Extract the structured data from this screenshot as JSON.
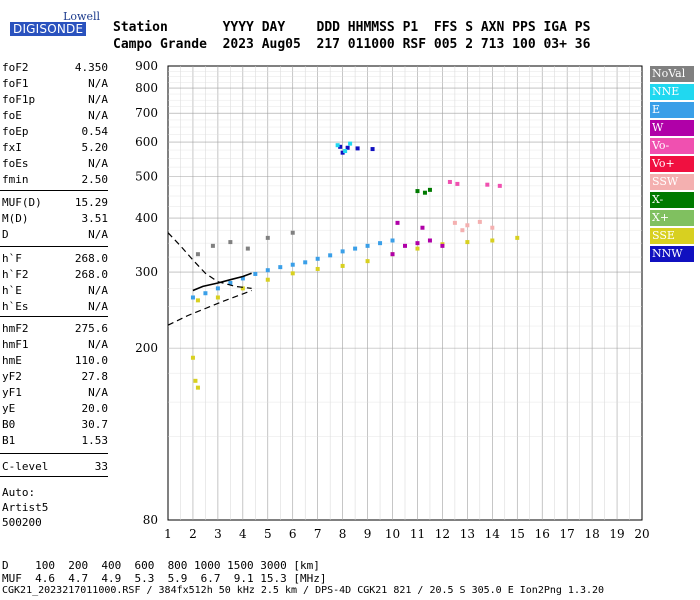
{
  "logo": {
    "lowell": "Lowell",
    "digisonde": "DIGISONDE"
  },
  "header": {
    "row1": "Station       YYYY DAY    DDD HHMMSS P1  FFS S AXN PPS IGA PS",
    "row2": "Campo Grande  2023 Aug05  217 011000 RSF 005 2 713 100 03+ 36"
  },
  "sidebar": {
    "group1": [
      {
        "k": "foF2",
        "v": "4.350"
      },
      {
        "k": "foF1",
        "v": "N/A"
      },
      {
        "k": "foF1p",
        "v": "N/A"
      },
      {
        "k": "foE",
        "v": "N/A"
      },
      {
        "k": "foEp",
        "v": "0.54"
      },
      {
        "k": "fxI",
        "v": "5.20"
      },
      {
        "k": "foEs",
        "v": "N/A"
      },
      {
        "k": "fmin",
        "v": "2.50"
      }
    ],
    "group2": [
      {
        "k": "MUF(D)",
        "v": "15.29"
      },
      {
        "k": "M(D)",
        "v": "3.51"
      },
      {
        "k": "D",
        "v": "N/A"
      }
    ],
    "group3": [
      {
        "k": "h`F",
        "v": "268.0"
      },
      {
        "k": "h`F2",
        "v": "268.0"
      },
      {
        "k": "h`E",
        "v": "N/A"
      },
      {
        "k": "h`Es",
        "v": "N/A"
      }
    ],
    "group4": [
      {
        "k": "hmF2",
        "v": "275.6"
      },
      {
        "k": "hmF1",
        "v": "N/A"
      },
      {
        "k": "hmE",
        "v": "110.0"
      },
      {
        "k": "yF2",
        "v": "27.8"
      },
      {
        "k": "yF1",
        "v": "N/A"
      },
      {
        "k": "yE",
        "v": "20.0"
      },
      {
        "k": "B0",
        "v": "30.7"
      },
      {
        "k": "B1",
        "v": "1.53"
      }
    ],
    "group5": [
      {
        "k": "C-level",
        "v": "33"
      }
    ],
    "auto": [
      "Auto:",
      "Artist5",
      "500200"
    ]
  },
  "legend": [
    {
      "label": "NoVal",
      "color": "#808080"
    },
    {
      "label": "NNE",
      "color": "#20d8f0"
    },
    {
      "label": "E",
      "color": "#3a9fe8"
    },
    {
      "label": "W",
      "color": "#b000a8"
    },
    {
      "label": "Vo-",
      "color": "#f050b0"
    },
    {
      "label": "Vo+",
      "color": "#f01040"
    },
    {
      "label": "SSW",
      "color": "#f4b0b0"
    },
    {
      "label": "X-",
      "color": "#007a00"
    },
    {
      "label": "X+",
      "color": "#80c060"
    },
    {
      "label": "SSE",
      "color": "#d8d020"
    },
    {
      "label": "NNW",
      "color": "#1010c0"
    }
  ],
  "bottom": {
    "d_row": "D    100  200  400  600  800 1000 1500 3000 [km]",
    "muf_row": "MUF  4.6  4.7  4.9  5.3  5.9  6.7  9.1 15.3 [MHz]",
    "footer": "CGK21_2023217011000.RSF / 384fx512h 50 kHz 2.5 km / DPS-4D CGK21 821 / 20.5 S 305.0 E Ion2Png 1.3.20"
  },
  "chart_data": {
    "type": "scatter",
    "xlabel": "",
    "ylabel": "",
    "xlim": [
      1,
      20
    ],
    "ylim": [
      80,
      900
    ],
    "y_scale": "log",
    "x_ticks": [
      "1",
      "2",
      "3",
      "4",
      "5",
      "6",
      "7",
      "8",
      "9",
      "10",
      "11",
      "12",
      "13",
      "14",
      "15",
      "16",
      "17",
      "18",
      "19",
      "20"
    ],
    "y_ticks": [
      "80",
      "200",
      "300",
      "400",
      "500",
      "600",
      "700",
      "800",
      "900"
    ],
    "grid": true,
    "legend_position": "right",
    "clusters": [
      {
        "name": "trace-main",
        "color": "#3a9fe8",
        "points": [
          [
            2.0,
            262
          ],
          [
            2.5,
            268
          ],
          [
            3.0,
            275
          ],
          [
            3.5,
            283
          ],
          [
            4.0,
            290
          ],
          [
            4.5,
            297
          ],
          [
            5.0,
            303
          ],
          [
            5.5,
            308
          ],
          [
            6.0,
            312
          ],
          [
            6.5,
            316
          ],
          [
            7.0,
            322
          ],
          [
            7.5,
            328
          ],
          [
            8.0,
            335
          ],
          [
            8.5,
            340
          ],
          [
            9.0,
            345
          ],
          [
            9.5,
            350
          ],
          [
            10.0,
            355
          ]
        ]
      },
      {
        "name": "trace-sse",
        "color": "#d8d020",
        "points": [
          [
            2.2,
            258
          ],
          [
            3.0,
            262
          ],
          [
            4.0,
            275
          ],
          [
            5.0,
            288
          ],
          [
            6.0,
            298
          ],
          [
            7.0,
            305
          ],
          [
            8.0,
            310
          ],
          [
            9.0,
            318
          ],
          [
            10.0,
            330
          ],
          [
            11.0,
            340
          ],
          [
            12.0,
            348
          ],
          [
            13.0,
            352
          ],
          [
            14.0,
            355
          ],
          [
            15.0,
            360
          ]
        ]
      },
      {
        "name": "w-cluster",
        "color": "#b000a8",
        "points": [
          [
            10.0,
            330
          ],
          [
            10.5,
            345
          ],
          [
            11.0,
            350
          ],
          [
            11.5,
            355
          ],
          [
            12.0,
            345
          ],
          [
            10.2,
            390
          ],
          [
            11.2,
            380
          ]
        ]
      },
      {
        "name": "ssw-cluster",
        "color": "#f4b0b0",
        "points": [
          [
            12.5,
            390
          ],
          [
            13.0,
            385
          ],
          [
            13.5,
            392
          ],
          [
            14.0,
            380
          ],
          [
            12.8,
            375
          ]
        ]
      },
      {
        "name": "nnw-high",
        "color": "#1010c0",
        "points": [
          [
            7.9,
            585
          ],
          [
            8.2,
            582
          ],
          [
            8.6,
            580
          ],
          [
            9.2,
            578
          ],
          [
            8.0,
            567
          ]
        ]
      },
      {
        "name": "nne-high",
        "color": "#20d8f0",
        "points": [
          [
            7.8,
            590
          ],
          [
            8.3,
            595
          ],
          [
            8.1,
            572
          ]
        ]
      },
      {
        "name": "xplus-high",
        "color": "#007a00",
        "points": [
          [
            11.0,
            462
          ],
          [
            11.3,
            458
          ],
          [
            11.5,
            465
          ]
        ]
      },
      {
        "name": "vo-high",
        "color": "#f050b0",
        "points": [
          [
            12.3,
            485
          ],
          [
            12.6,
            480
          ],
          [
            13.8,
            478
          ],
          [
            14.3,
            475
          ]
        ]
      },
      {
        "name": "low-sse",
        "color": "#d8d020",
        "points": [
          [
            2.0,
            190
          ],
          [
            2.1,
            168
          ],
          [
            2.2,
            162
          ]
        ]
      },
      {
        "name": "noval-scatter",
        "color": "#808080",
        "points": [
          [
            2.2,
            330
          ],
          [
            2.8,
            345
          ],
          [
            3.5,
            352
          ],
          [
            4.2,
            340
          ],
          [
            5.0,
            360
          ],
          [
            6.0,
            370
          ]
        ]
      }
    ],
    "profile_line": [
      [
        2.0,
        272
      ],
      [
        2.4,
        278
      ],
      [
        3.0,
        283
      ],
      [
        3.5,
        288
      ],
      [
        4.0,
        293
      ],
      [
        4.35,
        298
      ]
    ],
    "dashed_upper": [
      [
        1.0,
        370
      ],
      [
        1.5,
        345
      ],
      [
        2.0,
        320
      ],
      [
        2.5,
        298
      ],
      [
        3.0,
        285
      ],
      [
        3.7,
        278
      ],
      [
        4.35,
        275
      ]
    ],
    "dashed_lower": [
      [
        1.0,
        226
      ],
      [
        1.8,
        238
      ],
      [
        2.5,
        247
      ],
      [
        3.3,
        258
      ],
      [
        4.0,
        267
      ],
      [
        4.35,
        272
      ]
    ]
  }
}
